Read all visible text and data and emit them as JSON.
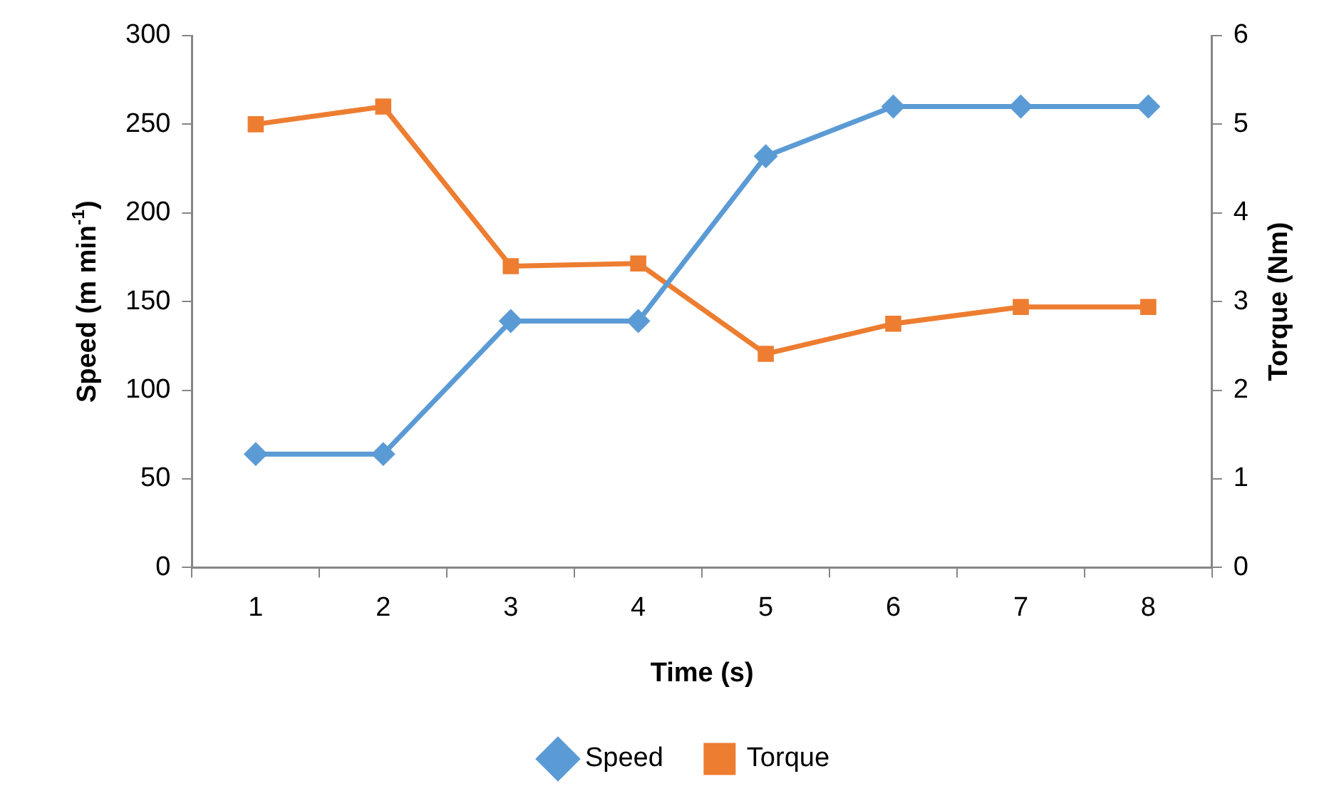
{
  "chart_data": {
    "type": "line",
    "xlabel": "Time (s)",
    "ylabel": "Speed (m min$^{-1}$)",
    "y2label": "Torque (Nm)",
    "categories": [
      "1",
      "2",
      "3",
      "4",
      "5",
      "6",
      "7",
      "8"
    ],
    "series": [
      {
        "name": "Speed",
        "color": "#5b9bd5",
        "marker": "diamond",
        "values": [
          64,
          64,
          139,
          139,
          232,
          260,
          260,
          260
        ]
      },
      {
        "name": "Torque",
        "color": "#ed7d31",
        "marker": "square",
        "axis": "y2",
        "values": [
          5.0,
          5.2,
          3.4,
          3.43,
          2.41,
          2.75,
          2.94,
          2.94
        ]
      }
    ],
    "ylim": [
      0,
      300
    ],
    "yticks": [
      0,
      50,
      100,
      150,
      200,
      250,
      300
    ],
    "y2lim": [
      0,
      6
    ],
    "y2ticks": [
      0,
      1,
      2,
      3,
      4,
      5,
      6
    ],
    "grid": false,
    "legend": "bottom",
    "line_style": "solid"
  }
}
